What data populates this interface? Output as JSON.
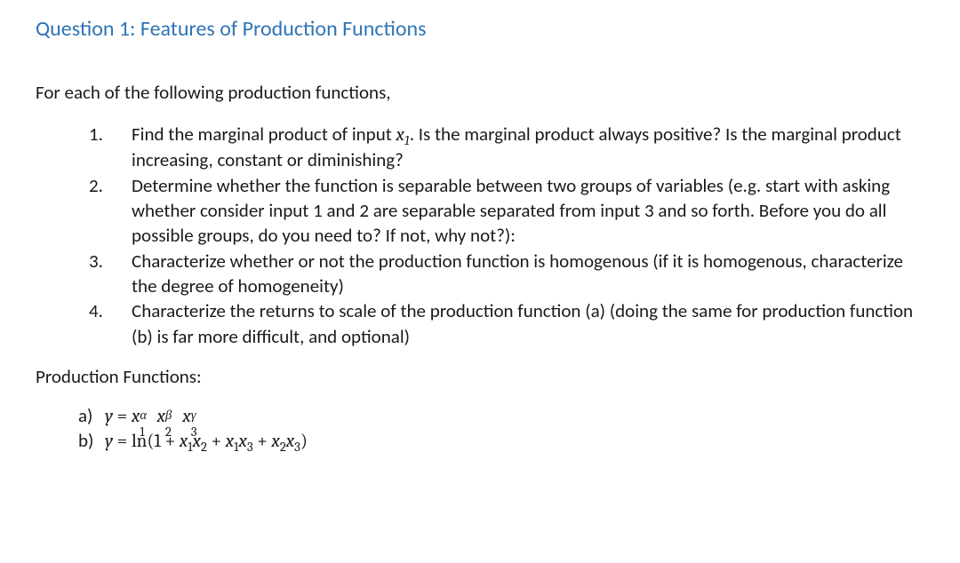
{
  "heading": {
    "text": "Question 1: Features of Production Functions",
    "color": "#2e74b5"
  },
  "intro": "For each of the following production functions,",
  "tasks": {
    "1": {
      "num": "1.",
      "pre": "Find the marginal product of input ",
      "post": ". Is the marginal product always positive? Is the marginal product increasing, constant or diminishing?",
      "math_var": "x",
      "math_sub": "1"
    },
    "2": {
      "num": "2.",
      "text": "Determine whether the function is separable between two groups of variables (e.g. start with asking whether consider input 1 and 2 are separable separated from input 3 and so forth. Before you do all possible groups, do you need to? If not, why not?):"
    },
    "3": {
      "num": "3.",
      "text": "Characterize whether or not the production function is homogenous (if it is homogenous, characterize the degree of homogeneity)"
    },
    "4": {
      "num": "4.",
      "text": "Characterize the returns to scale of the production function (a) (doing the same for production function (b) is far more difficult, and optional)"
    }
  },
  "subhead": "Production Functions:",
  "functions": {
    "a": {
      "letter": "a)",
      "lhs": "y",
      "eq": " = ",
      "base": "x",
      "sub1": "1",
      "sup1": "α",
      "sub2": "2",
      "sup2": "β",
      "sub3": "3",
      "sup3": "γ"
    },
    "b": {
      "letter": "b)",
      "lhs": "y",
      "eq": " = ",
      "fn": "ln",
      "open": "(1 + ",
      "x": "x",
      "s11a": "1",
      "s12a": "2",
      "plus1": " + ",
      "s11b": "1",
      "s13b": "3",
      "plus2": " + ",
      "s12c": "2",
      "s13c": "3",
      "close": ")"
    }
  }
}
